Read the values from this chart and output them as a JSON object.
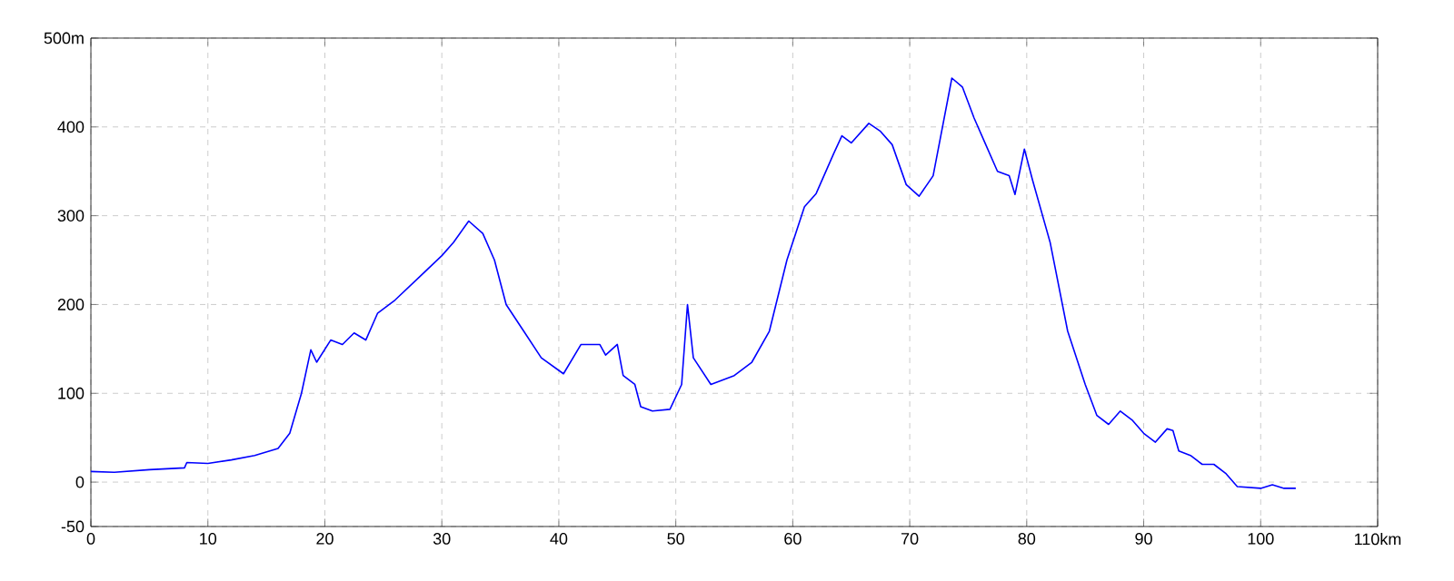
{
  "chart_data": {
    "type": "line",
    "x": [
      0,
      2,
      5,
      8,
      8.2,
      10,
      12,
      14,
      16,
      17,
      18,
      18.8,
      19.3,
      20.5,
      21.5,
      22.5,
      23.5,
      24.5,
      26,
      28,
      30,
      31,
      32.3,
      33.5,
      34.5,
      35.5,
      37,
      38.5,
      40.4,
      41.9,
      43.5,
      44,
      45,
      45.5,
      46.5,
      47,
      48,
      49.5,
      50.5,
      51,
      51.5,
      53,
      55,
      56.5,
      58,
      59.5,
      61,
      62,
      63.5,
      64.2,
      65,
      66.5,
      67.5,
      68.5,
      69.7,
      70.8,
      72,
      73.6,
      74.5,
      75.5,
      76.5,
      77.5,
      78.5,
      79,
      79.8,
      80.5,
      82,
      83.5,
      85,
      86,
      87,
      88,
      89,
      90,
      91,
      92,
      92.5,
      93,
      94,
      95,
      96,
      97,
      98,
      100,
      101,
      102,
      103
    ],
    "series": [
      {
        "color": "#0000ff",
        "values": [
          12,
          11,
          14,
          16,
          22,
          21,
          25,
          30,
          38,
          55,
          100,
          149,
          135,
          160,
          155,
          168,
          160,
          190,
          205,
          230,
          255,
          270,
          294,
          280,
          250,
          200,
          170,
          140,
          122,
          155,
          155,
          143,
          155,
          120,
          110,
          85,
          80,
          82,
          110,
          200,
          140,
          110,
          120,
          135,
          170,
          250,
          310,
          325,
          370,
          390,
          382,
          404,
          395,
          380,
          335,
          322,
          345,
          455,
          445,
          410,
          380,
          350,
          345,
          324,
          375,
          340,
          270,
          170,
          110,
          75,
          65,
          80,
          70,
          55,
          45,
          60,
          58,
          35,
          30,
          20,
          20,
          10,
          -5,
          -7,
          -3,
          -7,
          -7
        ]
      }
    ],
    "xlim": [
      0,
      110
    ],
    "xticks": [
      0,
      10,
      20,
      30,
      40,
      50,
      60,
      70,
      80,
      90,
      100,
      {
        "value": 110,
        "label": "110km"
      }
    ],
    "ylim": [
      -50,
      500
    ],
    "yticks": [
      -50,
      0,
      100,
      200,
      300,
      400,
      {
        "value": 500,
        "label": "500m"
      }
    ],
    "grid": true,
    "line_style": "solid",
    "marker": "none"
  }
}
